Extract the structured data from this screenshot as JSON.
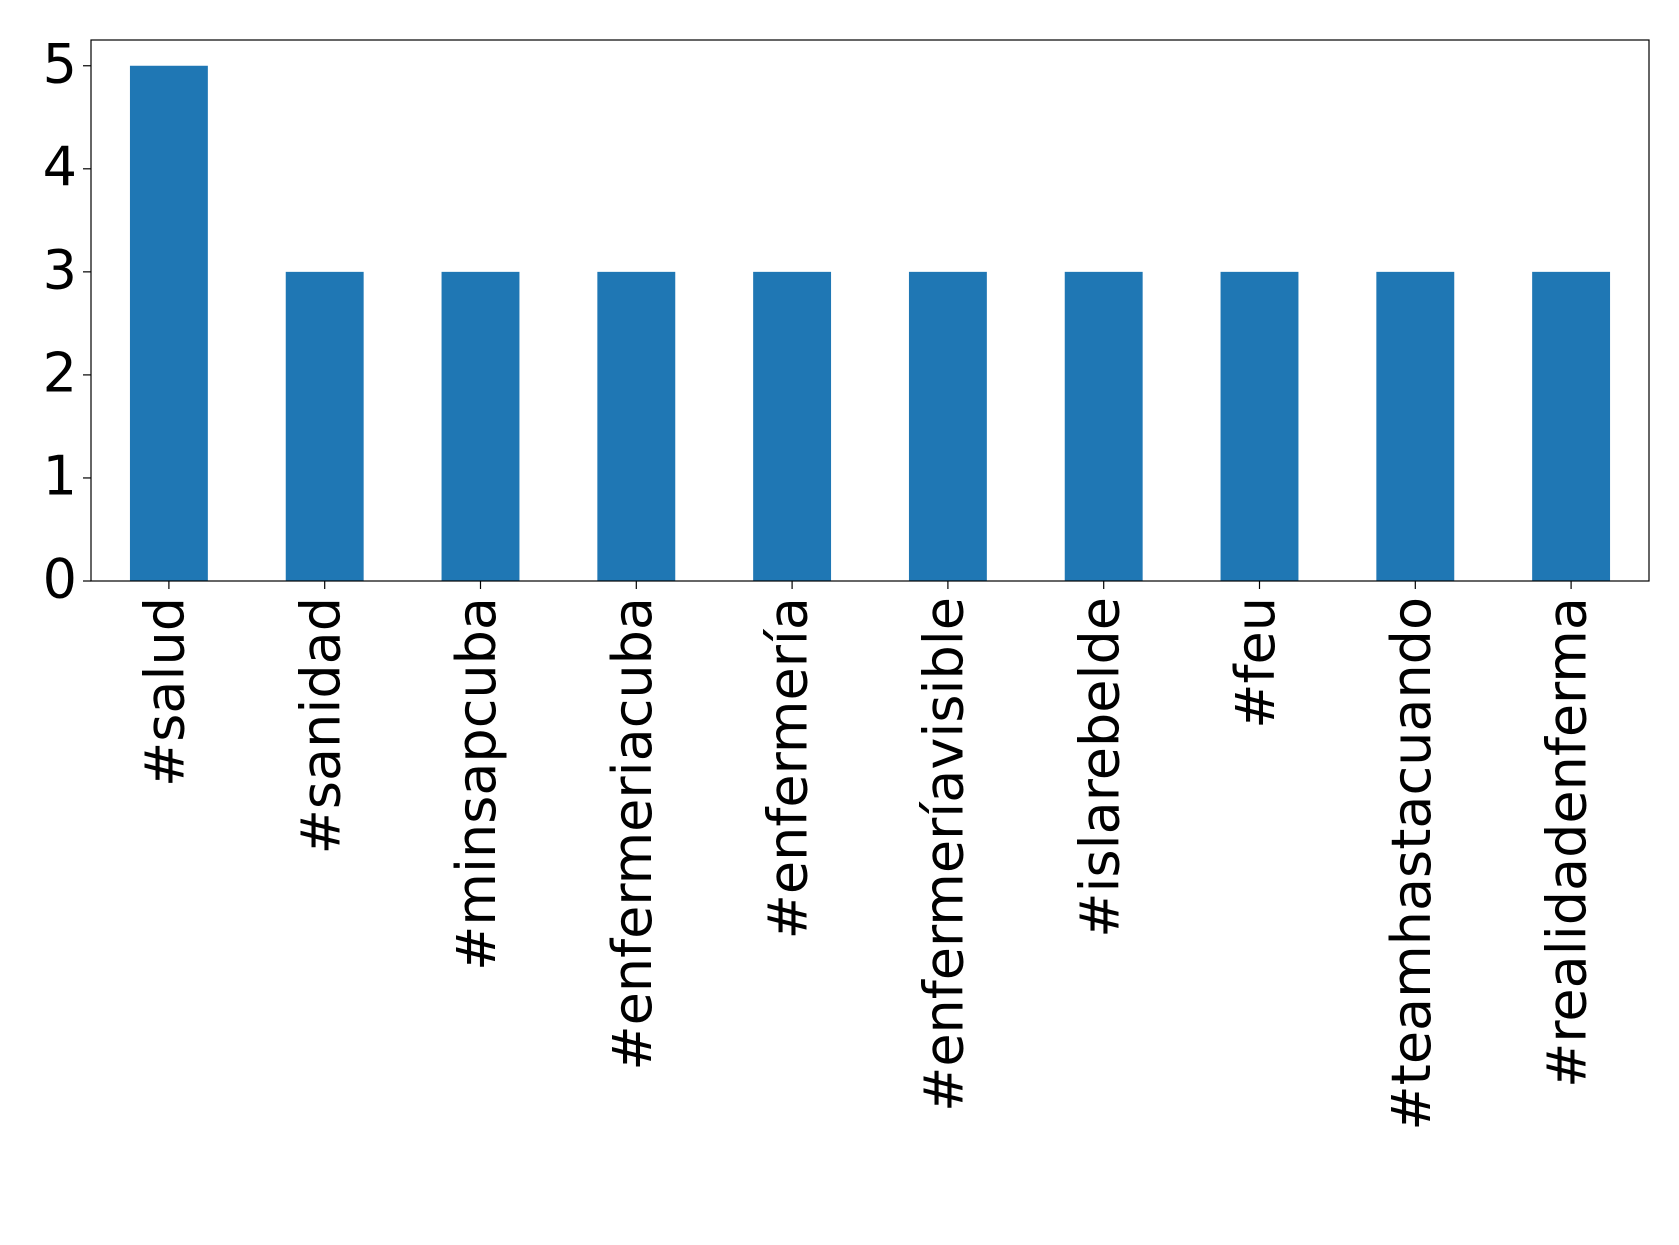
{
  "chart_data": {
    "type": "bar",
    "categories": [
      "#salud",
      "#sanidad",
      "#minsapcuba",
      "#enfermeriacuba",
      "#enfermería",
      "#enfermeríavisible",
      "#islarebelde",
      "#feu",
      "#teamhastacuando",
      "#realidadenferma"
    ],
    "values": [
      5,
      3,
      3,
      3,
      3,
      3,
      3,
      3,
      3,
      3
    ],
    "color": "#1f77b4",
    "ylim": [
      0,
      5.25
    ],
    "yticks": [
      0,
      1,
      2,
      3,
      4,
      5
    ],
    "grid": false
  }
}
